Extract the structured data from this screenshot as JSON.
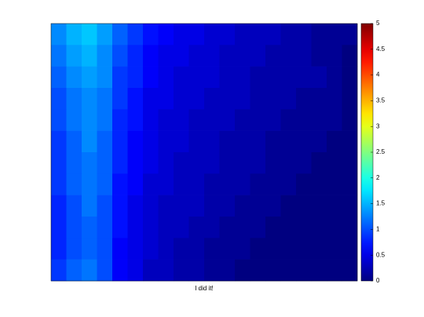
{
  "chart_data": {
    "type": "heatmap",
    "colormap": "jet",
    "xlabel": "I did it!",
    "clim": [
      0,
      5
    ],
    "cticks": [
      0,
      0.5,
      1,
      1.5,
      2,
      2.5,
      3,
      3.5,
      4,
      4.5,
      5
    ],
    "z": [
      [
        1.3,
        1.5,
        1.6,
        1.4,
        1.1,
        0.9,
        0.7,
        0.6,
        0.5,
        0.5,
        0.4,
        0.4,
        0.3,
        0.3,
        0.3,
        0.2,
        0.2,
        0.1,
        0.1,
        0.1
      ],
      [
        1.2,
        1.4,
        1.5,
        1.3,
        1.0,
        0.8,
        0.6,
        0.5,
        0.5,
        0.4,
        0.4,
        0.3,
        0.3,
        0.3,
        0.2,
        0.2,
        0.2,
        0.1,
        0.1,
        0
      ],
      [
        1.1,
        1.3,
        1.4,
        1.3,
        0.9,
        0.8,
        0.6,
        0.5,
        0.4,
        0.4,
        0.4,
        0.3,
        0.3,
        0.2,
        0.2,
        0.2,
        0.2,
        0.2,
        0.1,
        0
      ],
      [
        1.0,
        1.2,
        1.3,
        1.2,
        0.9,
        0.7,
        0.5,
        0.5,
        0.4,
        0.4,
        0.3,
        0.3,
        0.3,
        0.2,
        0.2,
        0.2,
        0.1,
        0.1,
        0.1,
        0
      ],
      [
        1.0,
        1.2,
        1.3,
        1.2,
        0.8,
        0.7,
        0.5,
        0.4,
        0.4,
        0.3,
        0.3,
        0.3,
        0.2,
        0.2,
        0.2,
        0.1,
        0.1,
        0.1,
        0.1,
        0
      ],
      [
        0.9,
        1.1,
        1.3,
        1.1,
        0.8,
        0.6,
        0.5,
        0.4,
        0.4,
        0.3,
        0.3,
        0.2,
        0.2,
        0.2,
        0.1,
        0.1,
        0.1,
        0.1,
        0,
        0
      ],
      [
        0.9,
        1.1,
        1.2,
        1.1,
        0.8,
        0.6,
        0.5,
        0.4,
        0.3,
        0.3,
        0.3,
        0.2,
        0.2,
        0.2,
        0.1,
        0.1,
        0.1,
        0,
        0,
        0
      ],
      [
        0.9,
        1.1,
        1.2,
        1.1,
        0.7,
        0.6,
        0.4,
        0.4,
        0.3,
        0.3,
        0.2,
        0.2,
        0.2,
        0.1,
        0.1,
        0.1,
        0,
        0,
        0,
        0
      ],
      [
        0.8,
        1.0,
        1.2,
        1.0,
        0.7,
        0.5,
        0.4,
        0.3,
        0.3,
        0.3,
        0.2,
        0.2,
        0.1,
        0.1,
        0.1,
        0,
        0,
        0,
        0,
        0
      ],
      [
        0.8,
        1.0,
        1.1,
        1.0,
        0.7,
        0.5,
        0.4,
        0.3,
        0.3,
        0.2,
        0.2,
        0.1,
        0.1,
        0.1,
        0,
        0,
        0,
        0,
        0,
        0
      ],
      [
        0.8,
        1.0,
        1.1,
        1.0,
        0.6,
        0.5,
        0.4,
        0.3,
        0.2,
        0.2,
        0.1,
        0.1,
        0.1,
        0,
        0,
        0,
        0,
        0,
        0,
        0
      ],
      [
        0.9,
        1.1,
        1.2,
        1.0,
        0.6,
        0.5,
        0.3,
        0.3,
        0.2,
        0.2,
        0.1,
        0.1,
        0,
        0,
        0,
        0,
        0,
        0,
        0,
        0
      ]
    ]
  }
}
